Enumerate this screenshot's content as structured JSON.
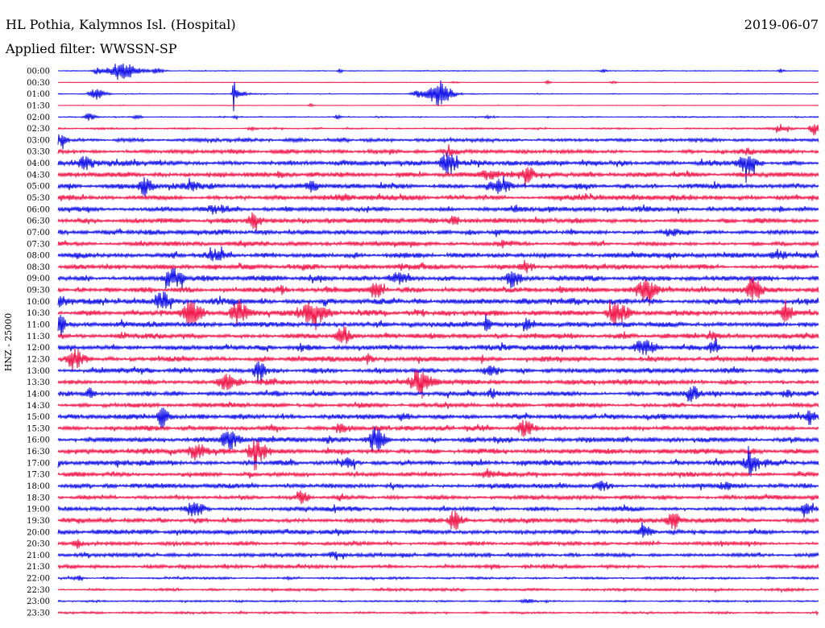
{
  "chart_data": {
    "type": "line",
    "title": "HL Pothia, Kalymnos Isl. (Hospital)",
    "date": "2019-06-07",
    "subtitle": "Applied filter: WWSSN-SP",
    "xlabel": "",
    "ylabel": "HNZ - 25000",
    "xlim": [
      0,
      30
    ],
    "grid": false,
    "palette": {
      "blue": "#1010e8",
      "red": "#f0164a"
    },
    "rows": [
      {
        "label": "00:00",
        "color": "blue",
        "noise": 0.03,
        "events": [
          {
            "t": 2.5,
            "a": 0.9,
            "d": 0.8
          },
          {
            "t": 1.6,
            "a": 0.3,
            "d": 0.35
          },
          {
            "t": 3.9,
            "a": 0.25,
            "d": 0.4
          },
          {
            "t": 11.1,
            "a": 0.2,
            "d": 0.15
          },
          {
            "t": 21.5,
            "a": 0.15,
            "d": 0.2
          },
          {
            "t": 28.5,
            "a": 0.2,
            "d": 0.15
          }
        ]
      },
      {
        "label": "00:30",
        "color": "red",
        "noise": 0.02,
        "events": [
          {
            "t": 19.3,
            "a": 0.15,
            "d": 0.2
          },
          {
            "t": 21.9,
            "a": 0.12,
            "d": 0.2
          },
          {
            "t": 15.6,
            "a": 0.08,
            "d": 0.3
          }
        ]
      },
      {
        "label": "01:00",
        "color": "blue",
        "noise": 0.03,
        "events": [
          {
            "t": 1.5,
            "a": 0.5,
            "d": 0.45
          },
          {
            "t": 6.93,
            "a": 1.6,
            "d": 0.07
          },
          {
            "t": 7.1,
            "a": 0.35,
            "d": 0.4
          },
          {
            "t": 14.2,
            "a": 0.3,
            "d": 0.5
          },
          {
            "t": 15.0,
            "a": 1.0,
            "d": 0.7
          }
        ]
      },
      {
        "label": "01:30",
        "color": "red",
        "noise": 0.02,
        "events": [
          {
            "t": 9.95,
            "a": 0.15,
            "d": 0.15
          }
        ]
      },
      {
        "label": "02:00",
        "color": "blue",
        "noise": 0.04,
        "events": [
          {
            "t": 1.2,
            "a": 0.3,
            "d": 0.35
          },
          {
            "t": 3.1,
            "a": 0.15,
            "d": 0.25
          },
          {
            "t": 6.95,
            "a": 0.25,
            "d": 0.1
          },
          {
            "t": 11.0,
            "a": 0.15,
            "d": 0.2
          },
          {
            "t": 17.0,
            "a": 0.1,
            "d": 0.3
          }
        ]
      },
      {
        "label": "02:30",
        "color": "red",
        "noise": 0.06,
        "events": [
          {
            "t": 29.8,
            "a": 0.6,
            "d": 0.3
          },
          {
            "t": 7.6,
            "a": 0.15,
            "d": 0.3
          },
          {
            "t": 28.5,
            "a": 0.2,
            "d": 0.6
          }
        ]
      },
      {
        "label": "03:00",
        "color": "blue",
        "noise": 0.12,
        "events": [
          {
            "t": 0.1,
            "a": 0.5,
            "d": 0.3
          }
        ]
      },
      {
        "label": "03:30",
        "color": "red",
        "noise": 0.14,
        "events": [
          {
            "t": 15.4,
            "a": 0.25,
            "d": 0.4
          },
          {
            "t": 27.1,
            "a": 0.2,
            "d": 0.4
          }
        ]
      },
      {
        "label": "04:00",
        "color": "blue",
        "noise": 0.17,
        "events": [
          {
            "t": 1.05,
            "a": 0.45,
            "d": 0.5
          },
          {
            "t": 15.35,
            "a": 0.8,
            "d": 0.5
          },
          {
            "t": 27.1,
            "a": 0.85,
            "d": 0.5
          }
        ]
      },
      {
        "label": "04:30",
        "color": "red",
        "noise": 0.18,
        "events": [
          {
            "t": 18.5,
            "a": 0.65,
            "d": 0.35
          },
          {
            "t": 8.7,
            "a": 0.35,
            "d": 0.2
          },
          {
            "t": 16.9,
            "a": 0.35,
            "d": 0.6
          }
        ]
      },
      {
        "label": "05:00",
        "color": "blue",
        "noise": 0.18,
        "events": [
          {
            "t": 3.4,
            "a": 0.75,
            "d": 0.4
          },
          {
            "t": 9.95,
            "a": 0.45,
            "d": 0.3
          },
          {
            "t": 17.3,
            "a": 0.55,
            "d": 0.6
          },
          {
            "t": 5.3,
            "a": 0.3,
            "d": 0.6
          }
        ]
      },
      {
        "label": "05:30",
        "color": "red",
        "noise": 0.18,
        "events": [
          {
            "t": 11.2,
            "a": 0.25,
            "d": 0.5
          }
        ]
      },
      {
        "label": "06:00",
        "color": "blue",
        "noise": 0.17,
        "events": [
          {
            "t": 6.3,
            "a": 0.2,
            "d": 0.8
          },
          {
            "t": 17.9,
            "a": 0.2,
            "d": 0.5
          }
        ]
      },
      {
        "label": "06:30",
        "color": "red",
        "noise": 0.16,
        "events": [
          {
            "t": 7.7,
            "a": 0.55,
            "d": 0.4
          },
          {
            "t": 15.6,
            "a": 0.35,
            "d": 0.3
          }
        ]
      },
      {
        "label": "07:00",
        "color": "blue",
        "noise": 0.17,
        "events": [
          {
            "t": 24.2,
            "a": 0.25,
            "d": 0.6
          }
        ]
      },
      {
        "label": "07:30",
        "color": "red",
        "noise": 0.15,
        "events": [
          {
            "t": 17.5,
            "a": 0.25,
            "d": 0.3
          }
        ]
      },
      {
        "label": "08:00",
        "color": "blue",
        "noise": 0.18,
        "events": [
          {
            "t": 6.3,
            "a": 0.4,
            "d": 0.6
          },
          {
            "t": 28.4,
            "a": 0.4,
            "d": 0.4
          }
        ]
      },
      {
        "label": "08:30",
        "color": "red",
        "noise": 0.17,
        "events": [
          {
            "t": 18.4,
            "a": 0.5,
            "d": 0.35
          },
          {
            "t": 13.6,
            "a": 0.25,
            "d": 0.3
          }
        ]
      },
      {
        "label": "09:00",
        "color": "blue",
        "noise": 0.18,
        "events": [
          {
            "t": 4.5,
            "a": 0.75,
            "d": 0.6
          },
          {
            "t": 13.3,
            "a": 0.5,
            "d": 0.5
          },
          {
            "t": 17.9,
            "a": 0.85,
            "d": 0.4
          }
        ]
      },
      {
        "label": "09:30",
        "color": "red",
        "noise": 0.18,
        "events": [
          {
            "t": 12.5,
            "a": 0.6,
            "d": 0.4
          },
          {
            "t": 23.1,
            "a": 0.85,
            "d": 0.6
          },
          {
            "t": 27.4,
            "a": 1.1,
            "d": 0.4
          },
          {
            "t": 8.8,
            "a": 0.35,
            "d": 0.3
          }
        ]
      },
      {
        "label": "10:00",
        "color": "blue",
        "noise": 0.2,
        "events": [
          {
            "t": 0.1,
            "a": 0.4,
            "d": 0.3
          },
          {
            "t": 4.1,
            "a": 0.75,
            "d": 0.4
          }
        ]
      },
      {
        "label": "10:30",
        "color": "red",
        "noise": 0.2,
        "events": [
          {
            "t": 5.2,
            "a": 0.9,
            "d": 0.6
          },
          {
            "t": 7.1,
            "a": 1.0,
            "d": 0.5
          },
          {
            "t": 9.95,
            "a": 0.8,
            "d": 0.7
          },
          {
            "t": 22.0,
            "a": 0.9,
            "d": 0.6
          },
          {
            "t": 28.7,
            "a": 0.6,
            "d": 0.5
          }
        ]
      },
      {
        "label": "11:00",
        "color": "blue",
        "noise": 0.18,
        "events": [
          {
            "t": 0.1,
            "a": 0.9,
            "d": 0.2
          },
          {
            "t": 16.9,
            "a": 0.45,
            "d": 0.3
          },
          {
            "t": 18.5,
            "a": 0.35,
            "d": 0.4
          }
        ]
      },
      {
        "label": "11:30",
        "color": "red",
        "noise": 0.18,
        "events": [
          {
            "t": 11.2,
            "a": 0.85,
            "d": 0.4
          },
          {
            "t": 25.8,
            "a": 0.4,
            "d": 0.3
          }
        ]
      },
      {
        "label": "12:00",
        "color": "blue",
        "noise": 0.18,
        "events": [
          {
            "t": 23.1,
            "a": 0.55,
            "d": 0.7
          },
          {
            "t": 25.8,
            "a": 0.55,
            "d": 0.3
          },
          {
            "t": 9.6,
            "a": 0.3,
            "d": 0.4
          }
        ]
      },
      {
        "label": "12:30",
        "color": "red",
        "noise": 0.18,
        "events": [
          {
            "t": 0.6,
            "a": 0.85,
            "d": 0.5
          },
          {
            "t": 12.2,
            "a": 0.35,
            "d": 0.3
          }
        ]
      },
      {
        "label": "13:00",
        "color": "blue",
        "noise": 0.18,
        "events": [
          {
            "t": 7.9,
            "a": 0.85,
            "d": 0.4
          },
          {
            "t": 17.0,
            "a": 0.3,
            "d": 0.5
          }
        ]
      },
      {
        "label": "13:30",
        "color": "red",
        "noise": 0.18,
        "events": [
          {
            "t": 6.6,
            "a": 0.55,
            "d": 0.6
          },
          {
            "t": 14.2,
            "a": 1.0,
            "d": 0.6
          }
        ]
      },
      {
        "label": "14:00",
        "color": "blue",
        "noise": 0.17,
        "events": [
          {
            "t": 1.2,
            "a": 0.45,
            "d": 0.3
          },
          {
            "t": 17.1,
            "a": 0.4,
            "d": 0.3
          },
          {
            "t": 25.0,
            "a": 0.55,
            "d": 0.3
          },
          {
            "t": 28.7,
            "a": 0.35,
            "d": 0.3
          }
        ]
      },
      {
        "label": "14:30",
        "color": "red",
        "noise": 0.15,
        "events": [
          {
            "t": 12.0,
            "a": 0.2,
            "d": 0.6
          }
        ]
      },
      {
        "label": "15:00",
        "color": "blue",
        "noise": 0.18,
        "events": [
          {
            "t": 4.1,
            "a": 0.9,
            "d": 0.35
          },
          {
            "t": 29.65,
            "a": 0.6,
            "d": 0.3
          },
          {
            "t": 13.6,
            "a": 0.3,
            "d": 0.3
          }
        ]
      },
      {
        "label": "15:30",
        "color": "red",
        "noise": 0.17,
        "events": [
          {
            "t": 18.4,
            "a": 0.65,
            "d": 0.5
          },
          {
            "t": 11.1,
            "a": 0.4,
            "d": 0.4
          }
        ]
      },
      {
        "label": "16:00",
        "color": "blue",
        "noise": 0.18,
        "events": [
          {
            "t": 6.7,
            "a": 0.85,
            "d": 0.5
          },
          {
            "t": 12.5,
            "a": 1.0,
            "d": 0.45
          },
          {
            "t": 10.6,
            "a": 0.35,
            "d": 0.3
          },
          {
            "t": 17.4,
            "a": 0.3,
            "d": 0.5
          }
        ]
      },
      {
        "label": "16:30",
        "color": "red",
        "noise": 0.18,
        "events": [
          {
            "t": 5.4,
            "a": 0.7,
            "d": 0.5
          },
          {
            "t": 7.8,
            "a": 1.0,
            "d": 0.6
          }
        ]
      },
      {
        "label": "17:00",
        "color": "blue",
        "noise": 0.18,
        "events": [
          {
            "t": 27.26,
            "a": 1.5,
            "d": 0.08
          },
          {
            "t": 27.3,
            "a": 0.8,
            "d": 0.5
          },
          {
            "t": 11.4,
            "a": 0.35,
            "d": 0.4
          }
        ]
      },
      {
        "label": "17:30",
        "color": "red",
        "noise": 0.15,
        "events": [
          {
            "t": 16.9,
            "a": 0.35,
            "d": 0.3
          }
        ]
      },
      {
        "label": "18:00",
        "color": "blue",
        "noise": 0.16,
        "events": [
          {
            "t": 26.3,
            "a": 0.35,
            "d": 0.4
          },
          {
            "t": 21.5,
            "a": 0.3,
            "d": 0.4
          }
        ]
      },
      {
        "label": "18:30",
        "color": "red",
        "noise": 0.15,
        "events": [
          {
            "t": 9.6,
            "a": 0.55,
            "d": 0.35
          }
        ]
      },
      {
        "label": "19:00",
        "color": "blue",
        "noise": 0.16,
        "events": [
          {
            "t": 5.3,
            "a": 0.6,
            "d": 0.5
          },
          {
            "t": 29.5,
            "a": 0.45,
            "d": 0.3
          }
        ]
      },
      {
        "label": "19:30",
        "color": "red",
        "noise": 0.16,
        "events": [
          {
            "t": 15.6,
            "a": 0.85,
            "d": 0.35
          },
          {
            "t": 24.2,
            "a": 0.85,
            "d": 0.35
          }
        ]
      },
      {
        "label": "20:00",
        "color": "blue",
        "noise": 0.15,
        "events": [
          {
            "t": 23.1,
            "a": 0.45,
            "d": 0.4
          }
        ]
      },
      {
        "label": "20:30",
        "color": "red",
        "noise": 0.13,
        "events": [
          {
            "t": 0.7,
            "a": 0.4,
            "d": 0.3
          }
        ]
      },
      {
        "label": "21:00",
        "color": "blue",
        "noise": 0.13,
        "events": [
          {
            "t": 10.8,
            "a": 0.2,
            "d": 0.5
          }
        ]
      },
      {
        "label": "21:30",
        "color": "red",
        "noise": 0.12,
        "events": []
      },
      {
        "label": "22:00",
        "color": "blue",
        "noise": 0.08,
        "events": [
          {
            "t": 0.8,
            "a": 0.2,
            "d": 0.3
          }
        ]
      },
      {
        "label": "22:30",
        "color": "red",
        "noise": 0.09,
        "events": []
      },
      {
        "label": "23:00",
        "color": "blue",
        "noise": 0.06,
        "events": [
          {
            "t": 18.5,
            "a": 0.15,
            "d": 0.4
          }
        ]
      },
      {
        "label": "23:30",
        "color": "red",
        "noise": 0.07,
        "events": []
      }
    ]
  }
}
